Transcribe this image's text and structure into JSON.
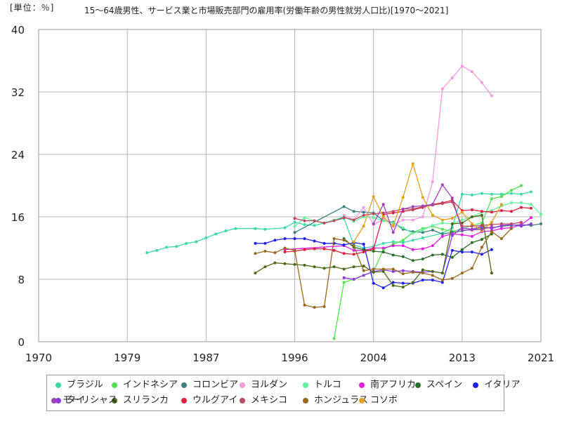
{
  "chart_data": {
    "type": "line",
    "title": "15～64歳男性、サービス業と市場販売部門の雇用率(労働年齢の男性就労人口比)[1970～2021]",
    "unit_label": "[単位：％]",
    "xlabel": "",
    "ylabel": "",
    "xlim": [
      1970,
      2021
    ],
    "ylim": [
      0,
      40
    ],
    "x_ticks": [
      1970,
      1979,
      1987,
      1996,
      2004,
      2013,
      2021
    ],
    "y_ticks": [
      0,
      8,
      16,
      24,
      32,
      40
    ],
    "grid": true,
    "legend_position": "bottom",
    "series": [
      {
        "name": "ブラジル",
        "color": "#3ed8a8",
        "x": [
          1981,
          1982,
          1983,
          1984,
          1985,
          1986,
          1987,
          1988,
          1989,
          1990,
          1992,
          1993,
          1995,
          1996,
          1997,
          1998,
          1999,
          2001,
          2002,
          2003,
          2004,
          2005,
          2006,
          2007,
          2008,
          2009,
          2011,
          2012,
          2013,
          2014,
          2015,
          2016,
          2017,
          2018,
          2019,
          2020
        ],
        "y": [
          11.4,
          11.7,
          12.1,
          12.2,
          12.6,
          12.8,
          13.3,
          13.8,
          14.2,
          14.5,
          14.5,
          14.4,
          14.6,
          15.3,
          15.0,
          14.9,
          15.2,
          15.8,
          12.4,
          12.0,
          12.2,
          12.6,
          12.8,
          12.7,
          13.0,
          13.3,
          13.9,
          14.6,
          18.9,
          18.8,
          19.0,
          18.9,
          18.9,
          19.0,
          18.9,
          19.2
        ]
      },
      {
        "name": "インドネシア",
        "color": "#52e052",
        "x": [
          2000,
          2001,
          2002,
          2003,
          2004,
          2005,
          2006,
          2007,
          2008,
          2009,
          2010,
          2011,
          2012,
          2013,
          2014,
          2015,
          2016,
          2017,
          2018,
          2019
        ],
        "y": [
          0.4,
          7.6,
          8.0,
          8.5,
          9.0,
          11.8,
          12.5,
          13.0,
          14.0,
          14.5,
          14.8,
          14.4,
          14.1,
          14.5,
          14.9,
          15.2,
          18.3,
          18.6,
          19.4,
          20.0
        ]
      },
      {
        "name": "コロンビア",
        "color": "#3d7f7f",
        "x": [
          1996,
          2001,
          2002,
          2003,
          2004,
          2005,
          2006,
          2007,
          2008,
          2009,
          2010,
          2011,
          2012,
          2013,
          2014,
          2015,
          2016,
          2017,
          2018,
          2019,
          2020,
          2021
        ],
        "y": [
          14.0,
          17.3,
          16.7,
          16.6,
          16.5,
          15.5,
          15.3,
          14.4,
          14.1,
          14.0,
          14.3,
          13.8,
          14.0,
          14.2,
          14.4,
          14.6,
          14.6,
          14.8,
          14.9,
          15.0,
          14.9,
          15.1
        ]
      },
      {
        "name": "ヨルダン",
        "color": "#f09ae0",
        "x": [
          2001,
          2002,
          2003,
          2004,
          2005,
          2006,
          2007,
          2008,
          2009,
          2010,
          2011,
          2012,
          2013,
          2014,
          2015,
          2016
        ],
        "y": [
          16.2,
          15.6,
          17.2,
          15.0,
          15.7,
          14.9,
          15.6,
          15.6,
          16.0,
          20.5,
          32.4,
          33.8,
          35.3,
          34.6,
          33.2,
          31.5
        ]
      },
      {
        "name": "トルコ",
        "color": "#66f0a0",
        "x": [
          1996,
          1997,
          1998,
          1999,
          2000,
          2001,
          2002,
          2003,
          2004,
          2005,
          2006,
          2007,
          2008,
          2009,
          2010,
          2011,
          2012,
          2013,
          2014,
          2015,
          2016,
          2017,
          2018,
          2019,
          2020,
          2021
        ],
        "y": [
          14.8,
          15.9,
          15.5,
          15.2,
          15.6,
          16.0,
          15.4,
          16.0,
          15.9,
          15.5,
          15.2,
          14.6,
          13.9,
          14.3,
          14.9,
          15.2,
          15.1,
          15.6,
          16.0,
          16.6,
          16.8,
          17.4,
          17.8,
          17.8,
          17.6,
          16.3
        ]
      },
      {
        "name": "南アフリカ",
        "color": "#e020e0",
        "x": [
          1995,
          2001,
          2002,
          2003,
          2004,
          2005,
          2006,
          2007,
          2008,
          2009,
          2010,
          2011,
          2012,
          2013,
          2014,
          2015,
          2016,
          2017,
          2018,
          2019,
          2020
        ],
        "y": [
          11.8,
          12.3,
          11.7,
          11.7,
          12.0,
          12.0,
          12.3,
          12.3,
          11.8,
          11.9,
          12.3,
          13.5,
          13.8,
          13.7,
          13.5,
          14.1,
          14.2,
          14.5,
          14.6,
          15.0,
          15.9
        ]
      },
      {
        "name": "スペイン",
        "color": "#2d6e2d",
        "x": [
          2001,
          2002,
          2003,
          2004,
          2005,
          2006,
          2007,
          2008,
          2009,
          2010,
          2011,
          2012,
          2013,
          2014,
          2015,
          2016
        ],
        "y": [
          13.2,
          12.1,
          11.8,
          11.6,
          11.5,
          11.1,
          10.9,
          10.4,
          10.6,
          11.1,
          11.2,
          10.8,
          11.8,
          12.7,
          13.1,
          13.8
        ]
      },
      {
        "name": "イタリア",
        "color": "#2020e0",
        "x": [
          1992,
          1993,
          1994,
          1995,
          1996,
          1997,
          1998,
          1999,
          2000,
          2001,
          2002,
          2003,
          2004,
          2005,
          2006,
          2007,
          2008,
          2009,
          2010,
          2011,
          2012,
          2013,
          2014,
          2015,
          2016
        ],
        "y": [
          12.6,
          12.6,
          13.0,
          13.2,
          13.2,
          13.2,
          12.9,
          12.6,
          12.6,
          12.4,
          12.7,
          12.5,
          7.5,
          6.9,
          7.6,
          7.5,
          7.5,
          7.9,
          7.9,
          7.6,
          11.7,
          11.5,
          11.5,
          11.2,
          11.8
        ]
      },
      {
        "name": "タイ",
        "color": "#8a3ae0",
        "x": [
          2001,
          2002,
          2003,
          2004,
          2005,
          2006,
          2007,
          2008,
          2009,
          2010,
          2011,
          2012,
          2013,
          2014,
          2015,
          2016,
          2017,
          2018,
          2019,
          2020
        ],
        "y": [
          8.2,
          8.0,
          8.5,
          9.0,
          9.2,
          9.0,
          9.1,
          9.0,
          8.9,
          9.0,
          8.8,
          13.6,
          14.6,
          14.4,
          14.8,
          14.5,
          14.9,
          15.0,
          14.8,
          15.1
        ]
      },
      {
        "name": "スリランカ",
        "color": "#4a6a1a",
        "x": [
          1992,
          1993,
          1994,
          1995,
          1996,
          1997,
          1998,
          1999,
          2000,
          2001,
          2002,
          2003,
          2004,
          2005,
          2006,
          2007,
          2008,
          2009,
          2010,
          2011,
          2012,
          2013,
          2014,
          2015,
          2016
        ],
        "y": [
          8.8,
          9.6,
          10.1,
          10.0,
          9.9,
          9.8,
          9.6,
          9.4,
          9.6,
          9.3,
          9.6,
          9.7,
          8.9,
          9.0,
          7.2,
          7.0,
          7.6,
          9.2,
          9.0,
          8.8,
          15.1,
          15.2,
          16.0,
          16.2,
          8.8
        ]
      },
      {
        "name": "ウルグアイ",
        "color": "#e02040",
        "x": [
          1995,
          1996,
          1997,
          1998,
          1999,
          2000,
          2001,
          2002,
          2003,
          2004,
          2005,
          2006,
          2007,
          2008,
          2009,
          2010,
          2011,
          2012,
          2013,
          2014,
          2015,
          2016,
          2017,
          2018,
          2019,
          2020
        ],
        "y": [
          11.5,
          11.6,
          11.8,
          11.9,
          11.9,
          11.7,
          11.3,
          11.2,
          11.5,
          11.9,
          16.3,
          16.5,
          16.7,
          16.9,
          17.2,
          17.6,
          17.8,
          18.1,
          16.8,
          16.9,
          16.7,
          16.6,
          16.8,
          16.7,
          17.2,
          17.1
        ]
      },
      {
        "name": "メキシコ",
        "color": "#b84a60",
        "x": [
          1996,
          1997,
          1998,
          1999,
          2000,
          2001,
          2002,
          2003,
          2004,
          2005,
          2006,
          2007,
          2008,
          2009,
          2010,
          2011,
          2012,
          2013,
          2014,
          2015,
          2016,
          2017,
          2018,
          2019
        ],
        "y": [
          15.8,
          15.5,
          15.5,
          15.2,
          15.5,
          15.9,
          15.6,
          16.2,
          16.4,
          16.5,
          16.7,
          17.0,
          17.0,
          17.3,
          17.5,
          17.7,
          17.9,
          14.8,
          14.8,
          14.9,
          15.0,
          15.1,
          15.1,
          15.3
        ]
      },
      {
        "name": "ホンジュラス",
        "color": "#9a6620",
        "x": [
          1992,
          1993,
          1994,
          1995,
          1996,
          1997,
          1998,
          1999,
          2000,
          2001,
          2002,
          2003,
          2004,
          2005,
          2006,
          2007,
          2008,
          2009,
          2010,
          2011,
          2012,
          2013,
          2014,
          2015,
          2016,
          2017,
          2018
        ],
        "y": [
          11.3,
          11.6,
          11.4,
          12.0,
          11.7,
          4.7,
          4.4,
          4.5,
          13.2,
          13.0,
          12.3,
          9.1,
          9.3,
          9.3,
          9.3,
          8.7,
          8.9,
          8.8,
          8.5,
          7.9,
          8.1,
          8.8,
          9.4,
          12.1,
          14.1,
          13.2,
          14.5
        ]
      },
      {
        "name": "コソボ",
        "color": "#e0a020",
        "x": [
          2002,
          2003,
          2004,
          2005,
          2006,
          2007,
          2008,
          2009,
          2010,
          2011,
          2012,
          2013,
          2014,
          2015,
          2016,
          2017
        ],
        "y": [
          12.8,
          14.8,
          18.6,
          16.0,
          14.8,
          18.5,
          22.8,
          18.5,
          16.2,
          15.6,
          15.8,
          16.6,
          15.1,
          14.2,
          15.3,
          17.6
        ]
      },
      {
        "name": "モーリシャス",
        "color": "#a040b8",
        "x": [
          2004,
          2005,
          2006,
          2007,
          2008,
          2009,
          2010,
          2011,
          2012,
          2013,
          2014,
          2015,
          2016
        ],
        "y": [
          15.1,
          17.6,
          14.0,
          17.0,
          17.3,
          17.4,
          17.6,
          20.1,
          18.4,
          14.3,
          14.3,
          14.4,
          14.7
        ]
      }
    ]
  }
}
